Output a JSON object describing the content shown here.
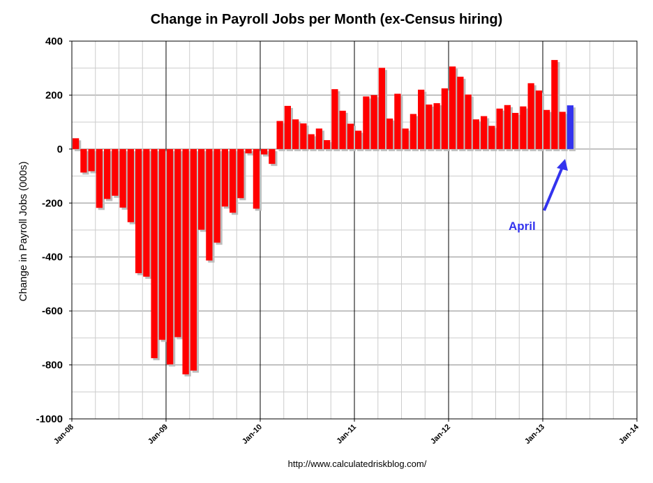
{
  "chart_data": {
    "type": "bar",
    "title": "Change in Payroll Jobs per Month (ex-Census hiring)",
    "ylabel": "Change in Payroll Jobs (000s)",
    "xlabel": "",
    "ylim": [
      -1000,
      400
    ],
    "yticks": [
      -1000,
      -800,
      -600,
      -400,
      -200,
      0,
      200,
      400
    ],
    "xticks": [
      "Jan-08",
      "Jan-09",
      "Jan-10",
      "Jan-11",
      "Jan-12",
      "Jan-13",
      "Jan-14"
    ],
    "start_month": "Jan-08",
    "months_on_axis": 72,
    "grid": true,
    "values": [
      40,
      -87,
      -82,
      -218,
      -185,
      -173,
      -217,
      -271,
      -460,
      -473,
      -775,
      -707,
      -798,
      -697,
      -835,
      -821,
      -299,
      -413,
      -347,
      -213,
      -236,
      -182,
      -16,
      -221,
      -20,
      -55,
      104,
      160,
      110,
      95,
      55,
      76,
      33,
      222,
      142,
      94,
      68,
      195,
      200,
      301,
      113,
      205,
      76,
      130,
      220,
      165,
      170,
      225,
      306,
      268,
      202,
      110,
      122,
      86,
      150,
      163,
      134,
      158,
      244,
      217,
      145,
      330,
      138,
      162
    ],
    "highlight_index": 63,
    "colors": {
      "bar": "#ff0000",
      "highlight": "#3333ee",
      "annotation": "#3333ee"
    },
    "annotation": {
      "text": "April",
      "month_index": 63
    },
    "source": "http://www.calculatedriskblog.com/"
  }
}
